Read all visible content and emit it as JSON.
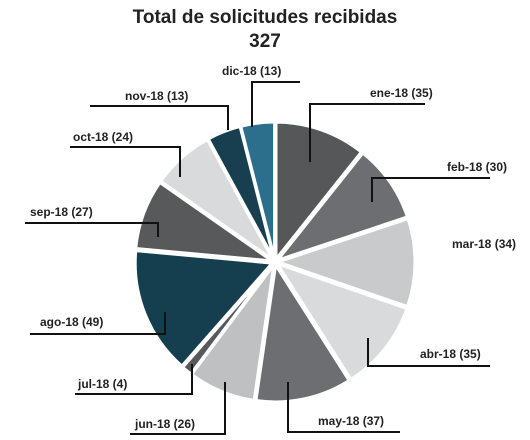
{
  "chart_data": {
    "type": "pie",
    "title": "Total de solicitudes recibidas",
    "subtitle": "327",
    "categories": [
      "ene-18 (35)",
      "feb-18 (30)",
      "mar-18 (34)",
      "abr-18 (35)",
      "may-18 (37)",
      "jun-18 (26)",
      "jul-18 (4)",
      "ago-18 (49)",
      "sep-18 (27)",
      "oct-18 (24)",
      "nov-18 (13)",
      "dic-18 (13)"
    ],
    "values": [
      35,
      30,
      34,
      35,
      37,
      26,
      4,
      49,
      27,
      24,
      13,
      13
    ],
    "colors": [
      "#555759",
      "#6d6e71",
      "#c9cacc",
      "#d9dadb",
      "#6d6e71",
      "#bfc0c2",
      "#58595b",
      "#153f4f",
      "#58595b",
      "#d9dadb",
      "#173f4f",
      "#2b6f8d"
    ]
  }
}
